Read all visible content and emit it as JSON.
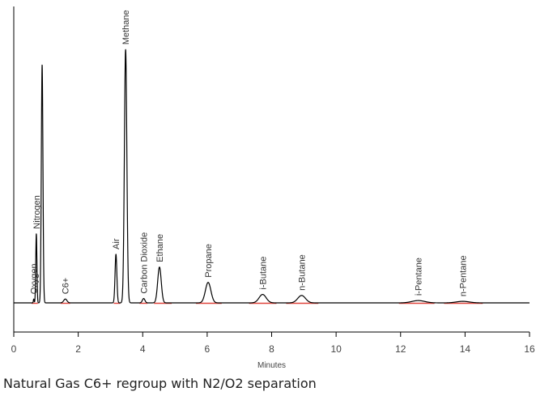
{
  "caption": "Natural Gas C6+ regroup with N2/O2 separation",
  "chart_data": {
    "type": "line",
    "title": "",
    "xlabel": "Minutes",
    "ylabel": "",
    "xlim": [
      0,
      16
    ],
    "x_ticks": [
      0,
      2,
      4,
      6,
      8,
      10,
      12,
      14,
      16
    ],
    "x_tick_labels": [
      "0",
      "2",
      "4",
      "6",
      "8",
      "10",
      "12",
      "14",
      "16"
    ],
    "grid": false,
    "colors": {
      "trace": "#000000",
      "baseline_marks": "#e0433b",
      "axis": "#000000"
    },
    "peaks": [
      {
        "label": "Oxygen",
        "rt": 0.62,
        "height": 0.015,
        "width": 0.012
      },
      {
        "label": "Nitrogen",
        "rt": 0.7,
        "height": 0.27,
        "width": 0.018
      },
      {
        "label": "",
        "rt": 0.88,
        "height": 0.93,
        "width": 0.025
      },
      {
        "label": "C6+",
        "rt": 1.6,
        "height": 0.015,
        "width": 0.05
      },
      {
        "label": "Air",
        "rt": 3.17,
        "height": 0.19,
        "width": 0.028
      },
      {
        "label": "Methane",
        "rt": 3.47,
        "height": 0.99,
        "width": 0.038
      },
      {
        "label": "Carbon Dioxide",
        "rt": 4.03,
        "height": 0.017,
        "width": 0.04
      },
      {
        "label": "Ethane",
        "rt": 4.52,
        "height": 0.14,
        "width": 0.055
      },
      {
        "label": "Propane",
        "rt": 6.03,
        "height": 0.08,
        "width": 0.085
      },
      {
        "label": "i-Butane",
        "rt": 7.72,
        "height": 0.033,
        "width": 0.11
      },
      {
        "label": "n-Butane",
        "rt": 8.93,
        "height": 0.029,
        "width": 0.12
      },
      {
        "label": "i-Pentane",
        "rt": 12.55,
        "height": 0.009,
        "width": 0.2
      },
      {
        "label": "n-Pentane",
        "rt": 13.93,
        "height": 0.006,
        "width": 0.2
      }
    ],
    "baseline_marks": [
      [
        0.55,
        0.75
      ],
      [
        1.45,
        1.75
      ],
      [
        3.1,
        3.3
      ],
      [
        3.9,
        4.15
      ],
      [
        4.35,
        4.9
      ],
      [
        5.65,
        6.45
      ],
      [
        7.3,
        8.15
      ],
      [
        8.45,
        9.45
      ],
      [
        11.95,
        13.05
      ],
      [
        13.35,
        14.55
      ]
    ]
  }
}
